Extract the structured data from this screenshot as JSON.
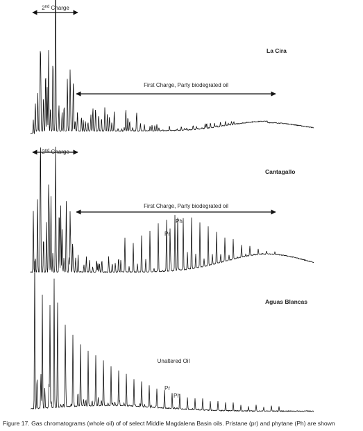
{
  "panels": [
    {
      "sample": "La Cira",
      "second_charge": {
        "number": "2",
        "ordinal": "nd",
        "word": " Charge"
      },
      "first_charge": "First Charge, Party biodegrated oil"
    },
    {
      "sample": "Cantagallo",
      "second_charge": {
        "number": "2",
        "ordinal": "nd",
        "word": " Charge"
      },
      "first_charge": "First Charge, Party biodegrated oil",
      "markers": [
        "Pr",
        "Ph"
      ]
    },
    {
      "sample": "Aguas Blancas",
      "annotation": "Unaltered Oil",
      "markers": [
        "Pr",
        "Ph"
      ]
    }
  ],
  "caption": "Figure 17. Gas chromatograms (whole oil) of of select Middle Magdalena Basin oils. Pristane (pr) and phytane (Ph) are shown"
}
